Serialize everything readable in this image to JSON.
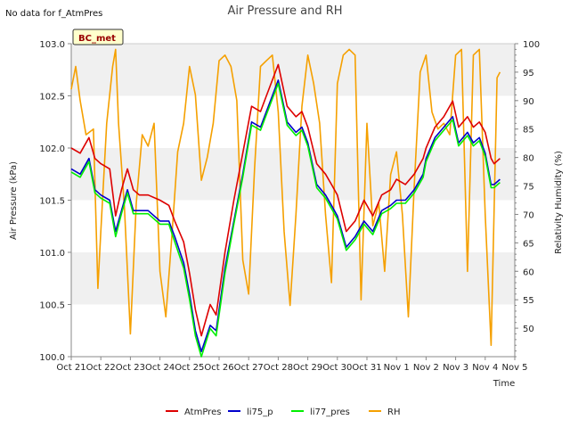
{
  "chart_data": {
    "type": "line",
    "title": "Air Pressure and RH",
    "note": "No data for f_AtmPres",
    "badge": "BC_met",
    "xlabel": "Time",
    "ylabel_left": "Air Pressure (kPa)",
    "ylabel_right": "Relativity Humidity (%)",
    "x_ticks": [
      "Oct 21",
      "Oct 22",
      "Oct 23",
      "Oct 24",
      "Oct 25",
      "Oct 26",
      "Oct 27",
      "Oct 28",
      "Oct 29",
      "Oct 30",
      "Oct 31",
      "Nov 1",
      "Nov 2",
      "Nov 3",
      "Nov 4",
      "Nov 5"
    ],
    "xlim": [
      0,
      15
    ],
    "ylim_left": [
      100.0,
      103.0
    ],
    "ylim_right": [
      45,
      100
    ],
    "yticks_left": [
      "100.0",
      "100.5",
      "101.0",
      "101.5",
      "102.0",
      "102.5",
      "103.0"
    ],
    "yticks_right": [
      "50",
      "55",
      "60",
      "65",
      "70",
      "75",
      "80",
      "85",
      "90",
      "95",
      "100"
    ],
    "grid": "horizontal bands",
    "legend_position": "bottom",
    "series": [
      {
        "name": "AtmPres",
        "color": "#dd0000",
        "axis": "left",
        "x": [
          0,
          0.3,
          0.6,
          0.8,
          1.0,
          1.3,
          1.5,
          1.7,
          1.9,
          2.1,
          2.3,
          2.6,
          3.0,
          3.3,
          3.5,
          3.8,
          4.0,
          4.2,
          4.4,
          4.7,
          4.9,
          5.2,
          5.5,
          5.8,
          6.1,
          6.4,
          6.6,
          7.0,
          7.3,
          7.6,
          7.8,
          8.0,
          8.3,
          8.6,
          8.8,
          9.0,
          9.3,
          9.6,
          9.9,
          10.2,
          10.5,
          10.8,
          11.0,
          11.3,
          11.6,
          11.9,
          12.0,
          12.3,
          12.6,
          12.9,
          13.1,
          13.4,
          13.6,
          13.8,
          14.0,
          14.2,
          14.3,
          14.5
        ],
        "y": [
          102.0,
          101.95,
          102.1,
          101.9,
          101.85,
          101.8,
          101.35,
          101.6,
          101.8,
          101.6,
          101.55,
          101.55,
          101.5,
          101.45,
          101.3,
          101.1,
          100.8,
          100.45,
          100.2,
          100.5,
          100.4,
          101.0,
          101.5,
          101.95,
          102.4,
          102.35,
          102.5,
          102.8,
          102.4,
          102.3,
          102.35,
          102.2,
          101.85,
          101.75,
          101.65,
          101.55,
          101.2,
          101.3,
          101.5,
          101.35,
          101.55,
          101.6,
          101.7,
          101.65,
          101.75,
          101.9,
          102.0,
          102.2,
          102.3,
          102.45,
          102.2,
          102.3,
          102.2,
          102.25,
          102.15,
          101.9,
          101.85,
          101.9
        ]
      },
      {
        "name": "li75_p",
        "color": "#0000cc",
        "axis": "left",
        "x": [
          0,
          0.3,
          0.6,
          0.8,
          1.0,
          1.3,
          1.5,
          1.7,
          1.9,
          2.1,
          2.3,
          2.6,
          3.0,
          3.3,
          3.5,
          3.8,
          4.0,
          4.2,
          4.4,
          4.7,
          4.9,
          5.2,
          5.5,
          5.8,
          6.1,
          6.4,
          6.6,
          7.0,
          7.3,
          7.6,
          7.8,
          8.0,
          8.3,
          8.6,
          8.8,
          9.0,
          9.3,
          9.6,
          9.9,
          10.2,
          10.5,
          10.8,
          11.0,
          11.3,
          11.6,
          11.9,
          12.0,
          12.3,
          12.6,
          12.9,
          13.1,
          13.4,
          13.6,
          13.8,
          14.0,
          14.2,
          14.3,
          14.5
        ],
        "y": [
          101.8,
          101.75,
          101.9,
          101.6,
          101.55,
          101.5,
          101.2,
          101.4,
          101.6,
          101.4,
          101.4,
          101.4,
          101.3,
          101.3,
          101.15,
          100.9,
          100.6,
          100.25,
          100.05,
          100.3,
          100.25,
          100.85,
          101.3,
          101.75,
          102.25,
          102.2,
          102.35,
          102.65,
          102.25,
          102.15,
          102.2,
          102.05,
          101.65,
          101.55,
          101.45,
          101.35,
          101.05,
          101.15,
          101.3,
          101.2,
          101.4,
          101.45,
          101.5,
          101.5,
          101.6,
          101.75,
          101.9,
          102.1,
          102.2,
          102.3,
          102.05,
          102.15,
          102.05,
          102.1,
          101.95,
          101.65,
          101.65,
          101.7
        ]
      },
      {
        "name": "li77_pres",
        "color": "#00ee00",
        "axis": "left",
        "x": [
          0,
          0.3,
          0.6,
          0.8,
          1.0,
          1.3,
          1.5,
          1.7,
          1.9,
          2.1,
          2.3,
          2.6,
          3.0,
          3.3,
          3.5,
          3.8,
          4.0,
          4.2,
          4.4,
          4.7,
          4.9,
          5.2,
          5.5,
          5.8,
          6.1,
          6.4,
          6.6,
          7.0,
          7.3,
          7.6,
          7.8,
          8.0,
          8.3,
          8.6,
          8.8,
          9.0,
          9.3,
          9.6,
          9.9,
          10.2,
          10.5,
          10.8,
          11.0,
          11.3,
          11.6,
          11.9,
          12.0,
          12.3,
          12.6,
          12.9,
          13.1,
          13.4,
          13.6,
          13.8,
          14.0,
          14.2,
          14.3,
          14.5
        ],
        "y": [
          101.77,
          101.72,
          101.87,
          101.57,
          101.52,
          101.47,
          101.15,
          101.37,
          101.57,
          101.37,
          101.37,
          101.37,
          101.27,
          101.27,
          101.1,
          100.85,
          100.55,
          100.2,
          100.0,
          100.27,
          100.2,
          100.8,
          101.27,
          101.72,
          102.22,
          102.17,
          102.32,
          102.62,
          102.22,
          102.12,
          102.17,
          102.02,
          101.62,
          101.52,
          101.42,
          101.32,
          101.02,
          101.12,
          101.27,
          101.17,
          101.37,
          101.42,
          101.47,
          101.47,
          101.57,
          101.72,
          101.87,
          102.07,
          102.17,
          102.27,
          102.02,
          102.12,
          102.02,
          102.07,
          101.92,
          101.62,
          101.62,
          101.67
        ]
      },
      {
        "name": "RH",
        "color": "#f5a000",
        "axis": "right",
        "x": [
          0,
          0.15,
          0.3,
          0.5,
          0.75,
          0.9,
          1.0,
          1.2,
          1.4,
          1.5,
          1.6,
          1.8,
          2.0,
          2.2,
          2.4,
          2.6,
          2.8,
          3.0,
          3.2,
          3.4,
          3.6,
          3.8,
          4.0,
          4.2,
          4.4,
          4.6,
          4.8,
          5.0,
          5.2,
          5.4,
          5.6,
          5.8,
          6.0,
          6.2,
          6.4,
          6.6,
          6.8,
          7.0,
          7.2,
          7.4,
          7.6,
          7.8,
          8.0,
          8.2,
          8.4,
          8.6,
          8.8,
          9.0,
          9.2,
          9.4,
          9.6,
          9.8,
          10.0,
          10.2,
          10.4,
          10.6,
          10.8,
          11.0,
          11.2,
          11.4,
          11.6,
          11.8,
          12.0,
          12.2,
          12.4,
          12.6,
          12.8,
          13.0,
          13.2,
          13.4,
          13.6,
          13.8,
          14.0,
          14.2,
          14.4,
          14.5
        ],
        "y": [
          92,
          96,
          90,
          84,
          85,
          57,
          67,
          86,
          96,
          99,
          86,
          71,
          49,
          72,
          84,
          82,
          86,
          60,
          52,
          66,
          81,
          86,
          96,
          91,
          76,
          80,
          86,
          97,
          98,
          96,
          90,
          62,
          56,
          78,
          96,
          97,
          98,
          88,
          67,
          54,
          70,
          89,
          98,
          93,
          86,
          70,
          58,
          93,
          98,
          99,
          98,
          55,
          86,
          68,
          72,
          60,
          77,
          81,
          70,
          52,
          75,
          95,
          98,
          88,
          85,
          86,
          84,
          98,
          99,
          60,
          98,
          99,
          70,
          47,
          94,
          95
        ]
      }
    ]
  }
}
